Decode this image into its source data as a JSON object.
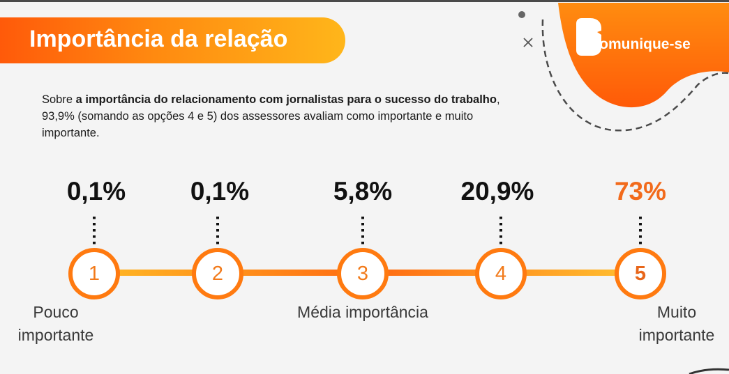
{
  "title": "Importância da relação",
  "intro": {
    "prefix": "Sobre ",
    "bold": "a importância do relacionamento com jornalistas para o sucesso do trabalho",
    "suffix": ", 93,9% (somando as opções 4 e 5) dos assessores avaliam como importante e muito importante."
  },
  "logo": {
    "text": "Comunique-se",
    "icon": "speech-bubble-icon"
  },
  "colors": {
    "accent": "#ff7a10",
    "highlight": "#f26a1b",
    "line": "#ffb624"
  },
  "scale": {
    "steps": [
      {
        "number": "1",
        "percent": "0,1%"
      },
      {
        "number": "2",
        "percent": "0,1%"
      },
      {
        "number": "3",
        "percent": "5,8%"
      },
      {
        "number": "4",
        "percent": "20,9%"
      },
      {
        "number": "5",
        "percent": "73%"
      }
    ],
    "labels": {
      "low_line1": "Pouco",
      "low_line2": "importante",
      "mid": "Média importância",
      "high_line1": "Muito",
      "high_line2": "importante"
    }
  }
}
